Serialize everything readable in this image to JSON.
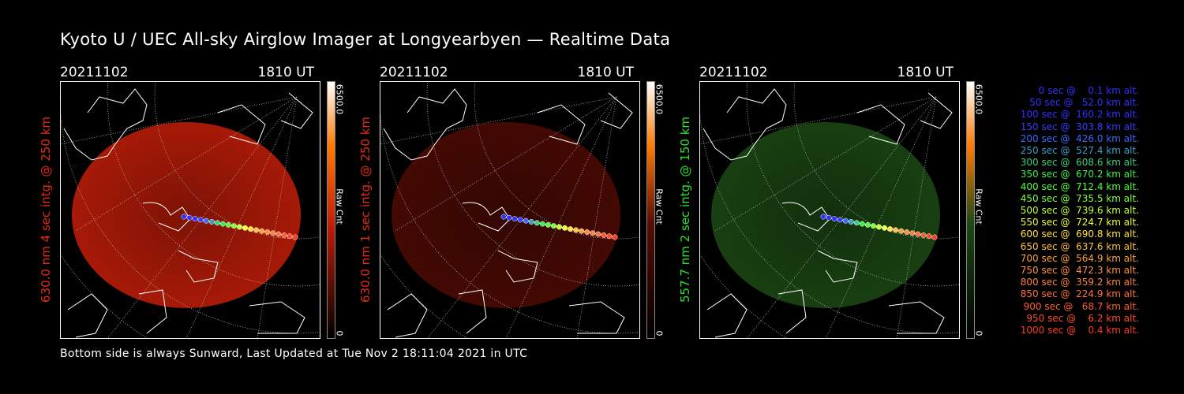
{
  "title": "Kyoto U / UEC All-sky Airglow Imager at Longyearbyen — Realtime Data",
  "footer": "Bottom side is always Sunward, Last Updated at Tue Nov  2 18:11:04 2021 in UTC",
  "panels": [
    {
      "date": "20211102",
      "time": "1810 UT",
      "side_label": "630.0 nm 4 sec intg. @ 250 km",
      "side_color": "#e52a10",
      "cbar_max": "6500.0",
      "cbar_unit": "Raw Cnt",
      "cbar_min": "0",
      "glow_color": "#c41e08",
      "glow_opacity": 0.85
    },
    {
      "date": "20211102",
      "time": "1810 UT",
      "side_label": "630.0 nm 1 sec intg. @ 250 km",
      "side_color": "#e52a10",
      "cbar_max": "6500.0",
      "cbar_unit": "Raw Cnt",
      "cbar_min": "0",
      "glow_color": "#5a0c04",
      "glow_opacity": 0.75
    },
    {
      "date": "20211102",
      "time": "1810 UT",
      "side_label": "557.7 nm 2 sec intg. @ 150 km",
      "side_color": "#2ee02e",
      "cbar_max": "6500.0",
      "cbar_unit": "Raw Cnt",
      "cbar_min": "0",
      "glow_color": "#1c4a14",
      "glow_opacity": 0.85
    }
  ],
  "legend": [
    {
      "text": "   0 sec @    0.1 km alt.",
      "color": "#3030ff"
    },
    {
      "text": "  50 sec @   52.0 km alt.",
      "color": "#3030ff"
    },
    {
      "text": " 100 sec @  160.2 km alt.",
      "color": "#3030ff"
    },
    {
      "text": " 150 sec @  303.8 km alt.",
      "color": "#3a3aff"
    },
    {
      "text": " 200 sec @  426.0 km alt.",
      "color": "#3a6aff"
    },
    {
      "text": " 250 sec @  527.4 km alt.",
      "color": "#3aa0c8"
    },
    {
      "text": " 300 sec @  608.6 km alt.",
      "color": "#3ad080"
    },
    {
      "text": " 350 sec @  670.2 km alt.",
      "color": "#3af050"
    },
    {
      "text": " 400 sec @  712.4 km alt.",
      "color": "#50ff3a"
    },
    {
      "text": " 450 sec @  735.5 km alt.",
      "color": "#80ff3a"
    },
    {
      "text": " 500 sec @  739.6 km alt.",
      "color": "#c0ff30"
    },
    {
      "text": " 550 sec @  724.7 km alt.",
      "color": "#f0ff30"
    },
    {
      "text": " 600 sec @  690.8 km alt.",
      "color": "#ffe040"
    },
    {
      "text": " 650 sec @  637.6 km alt.",
      "color": "#ffc040"
    },
    {
      "text": " 700 sec @  564.9 km alt.",
      "color": "#ffa040"
    },
    {
      "text": " 750 sec @  472.3 km alt.",
      "color": "#ff9040"
    },
    {
      "text": " 800 sec @  359.2 km alt.",
      "color": "#ff8040"
    },
    {
      "text": " 850 sec @  224.9 km alt.",
      "color": "#ff7040"
    },
    {
      "text": " 900 sec @   68.7 km alt.",
      "color": "#ff5a30"
    },
    {
      "text": " 950 sec @    6.2 km alt.",
      "color": "#ff4a28"
    },
    {
      "text": "1000 sec @    0.4 km alt.",
      "color": "#ff3a20"
    }
  ]
}
